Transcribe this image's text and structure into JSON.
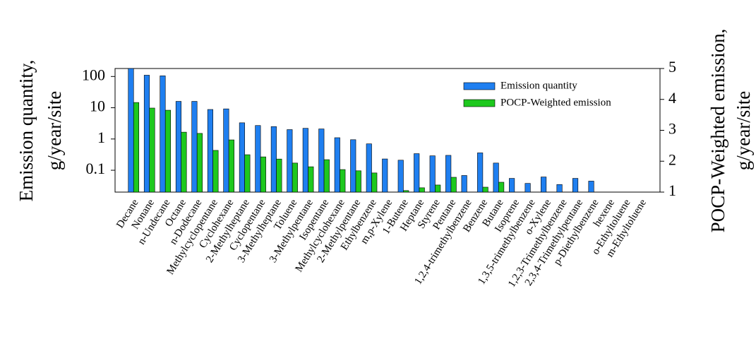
{
  "chart_data": {
    "type": "dual-axis-bar",
    "ylabel": [
      "Emission quantity,",
      "g/year/site"
    ],
    "y2label": [
      "POCP-Weighted emission,",
      "g/year/site"
    ],
    "categories": [
      "Decane",
      "Nonane",
      "n-Undecane",
      "Octane",
      "n-Dodecane",
      "Methylcyclopentane",
      "Cyclohexane",
      "2-Methylheptane",
      "Cyclopentane",
      "3-Methylheptane",
      "Toluene",
      "3-Methylpentane",
      "Isopentane",
      "Methylcyclohexane",
      "2-Methylpentane",
      "Ethylbenzene",
      "m,p-Xylene",
      "1-Butene",
      "Heptane",
      "Styrene",
      "Pentane",
      "1,2,4-trimethylbenzene",
      "Benzene",
      "Butane",
      "Isoprene",
      "1,3,5-trimethylbenzene",
      "o-Xylene",
      "1,2,3-Trimethylbenzene",
      "2,3,4-Trimethylpentane",
      "p-Diethylbenzene",
      "hexene",
      "o-Ethyltoluene",
      "m-Ethyltoluene"
    ],
    "series": [
      {
        "name": "Emission quantity",
        "color": "#1f7ff0",
        "axis": "y",
        "values": [
          180,
          110,
          105,
          16,
          16,
          8.8,
          9.2,
          3.3,
          2.7,
          2.5,
          2.0,
          2.2,
          2.1,
          1.1,
          0.95,
          0.7,
          0.23,
          0.21,
          0.34,
          0.29,
          0.3,
          0.068,
          0.36,
          0.17,
          0.055,
          0.038,
          0.061,
          0.035,
          0.055,
          0.045,
          null,
          null,
          null
        ]
      },
      {
        "name": "POCP-Weighted emission",
        "color": "#1ec81e",
        "axis": "y2",
        "values": [
          3.9,
          3.72,
          3.65,
          2.94,
          2.9,
          2.35,
          2.69,
          2.21,
          2.14,
          2.07,
          1.94,
          1.82,
          2.05,
          1.73,
          1.69,
          1.62,
          null,
          1.05,
          1.14,
          1.23,
          1.48,
          null,
          1.16,
          1.32,
          null,
          null,
          null,
          null,
          null,
          null,
          null,
          null,
          null
        ]
      }
    ],
    "yscale": "log",
    "ylim": [
      0.02,
      180
    ],
    "yticks": [
      0.1,
      1,
      10,
      100
    ],
    "y2lim": [
      1,
      5
    ],
    "y2ticks": [
      1,
      2,
      3,
      4,
      5
    ],
    "legend": "upper right"
  }
}
